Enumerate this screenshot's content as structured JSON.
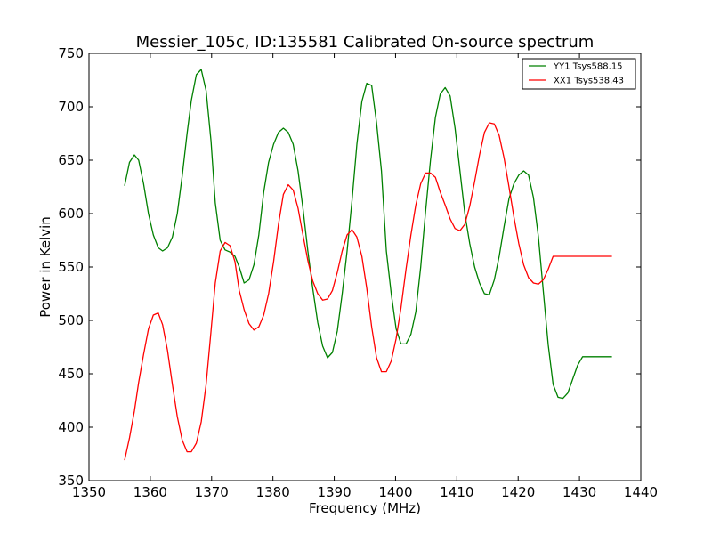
{
  "chart_data": {
    "type": "line",
    "title": "Messier_105c, ID:135581 Calibrated On-source spectrum",
    "xlabel": "Frequency (MHz)",
    "ylabel": "Power in Kelvin",
    "xlim": [
      1350,
      1440
    ],
    "ylim": [
      350,
      750
    ],
    "xticks": [
      1350,
      1360,
      1370,
      1380,
      1390,
      1400,
      1410,
      1420,
      1430,
      1440
    ],
    "yticks": [
      350,
      400,
      450,
      500,
      550,
      600,
      650,
      700,
      750
    ],
    "legend_position": "top-right",
    "series": [
      {
        "name": "YY1 Tsys588.15",
        "color": "#008000",
        "x": [
          1355.8,
          1356.6,
          1357.4,
          1358.1,
          1358.9,
          1359.7,
          1360.5,
          1361.3,
          1362.0,
          1362.8,
          1363.6,
          1364.4,
          1365.2,
          1366.0,
          1366.7,
          1367.5,
          1368.3,
          1369.1,
          1369.9,
          1370.6,
          1371.4,
          1372.2,
          1373.0,
          1373.8,
          1374.5,
          1375.3,
          1376.1,
          1376.9,
          1377.7,
          1378.5,
          1379.3,
          1380.1,
          1380.9,
          1381.7,
          1382.5,
          1383.3,
          1384.1,
          1384.9,
          1385.7,
          1386.5,
          1387.3,
          1388.1,
          1388.9,
          1389.7,
          1390.5,
          1391.3,
          1392.1,
          1392.9,
          1393.7,
          1394.5,
          1395.3,
          1396.1,
          1396.9,
          1397.7,
          1398.5,
          1399.3,
          1400.1,
          1400.9,
          1401.7,
          1402.5,
          1403.3,
          1404.1,
          1404.9,
          1405.7,
          1406.5,
          1407.3,
          1408.1,
          1408.9,
          1409.7,
          1410.5,
          1411.3,
          1412.1,
          1412.9,
          1413.7,
          1414.5,
          1415.3,
          1416.1,
          1416.9,
          1417.7,
          1418.5,
          1419.3,
          1420.1,
          1420.9,
          1421.7,
          1422.5,
          1423.3,
          1424.1,
          1424.9,
          1425.7,
          1426.5,
          1427.3,
          1428.1,
          1428.9,
          1429.7,
          1430.5,
          1431.3,
          1432.1,
          1432.9,
          1433.7,
          1434.5,
          1435.3
        ],
        "values": [
          626,
          648,
          655,
          650,
          628,
          600,
          580,
          568,
          565,
          568,
          578,
          600,
          635,
          675,
          706,
          730,
          735,
          715,
          668,
          610,
          575,
          566,
          564,
          560,
          550,
          535,
          538,
          552,
          580,
          620,
          648,
          665,
          676,
          680,
          676,
          665,
          640,
          605,
          565,
          530,
          498,
          476,
          465,
          470,
          490,
          525,
          565,
          612,
          665,
          705,
          722,
          720,
          685,
          640,
          565,
          525,
          492,
          478,
          478,
          487,
          508,
          550,
          602,
          650,
          690,
          712,
          718,
          710,
          680,
          640,
          600,
          572,
          550,
          535,
          525,
          524,
          538,
          560,
          588,
          614,
          628,
          636,
          640,
          636,
          615,
          578,
          527,
          477,
          440,
          428,
          427,
          432,
          445,
          458,
          466,
          466,
          466,
          466,
          466,
          466,
          466
        ]
      },
      {
        "name": "XX1 Tsys538.43",
        "color": "#ff0000",
        "x": [
          1355.8,
          1356.6,
          1357.4,
          1358.1,
          1358.9,
          1359.7,
          1360.5,
          1361.3,
          1362.0,
          1362.8,
          1363.6,
          1364.4,
          1365.2,
          1366.0,
          1366.7,
          1367.5,
          1368.3,
          1369.1,
          1369.9,
          1370.6,
          1371.4,
          1372.2,
          1373.0,
          1373.8,
          1374.5,
          1375.3,
          1376.1,
          1376.9,
          1377.7,
          1378.5,
          1379.3,
          1380.1,
          1380.9,
          1381.7,
          1382.5,
          1383.3,
          1384.1,
          1384.9,
          1385.7,
          1386.5,
          1387.3,
          1388.1,
          1388.9,
          1389.7,
          1390.5,
          1391.3,
          1392.1,
          1392.9,
          1393.7,
          1394.5,
          1395.3,
          1396.1,
          1396.9,
          1397.7,
          1398.5,
          1399.3,
          1400.1,
          1400.9,
          1401.7,
          1402.5,
          1403.3,
          1404.1,
          1404.9,
          1405.7,
          1406.5,
          1407.3,
          1408.1,
          1408.9,
          1409.7,
          1410.5,
          1411.3,
          1412.1,
          1412.9,
          1413.7,
          1414.5,
          1415.3,
          1416.1,
          1416.9,
          1417.7,
          1418.5,
          1419.3,
          1420.1,
          1420.9,
          1421.7,
          1422.5,
          1423.3,
          1424.1,
          1424.9,
          1425.7,
          1426.5,
          1427.3,
          1428.1,
          1428.9,
          1429.7,
          1430.5,
          1431.3,
          1432.1,
          1432.9,
          1433.7,
          1434.5,
          1435.3
        ],
        "values": [
          369,
          390,
          415,
          442,
          468,
          492,
          505,
          507,
          496,
          472,
          440,
          410,
          388,
          377,
          377,
          385,
          405,
          440,
          490,
          535,
          565,
          573,
          570,
          555,
          528,
          510,
          497,
          491,
          494,
          505,
          525,
          555,
          590,
          618,
          627,
          622,
          605,
          580,
          556,
          537,
          525,
          519,
          520,
          528,
          545,
          565,
          580,
          585,
          578,
          560,
          530,
          494,
          465,
          452,
          452,
          462,
          483,
          512,
          548,
          580,
          608,
          628,
          638,
          638,
          634,
          620,
          608,
          595,
          586,
          584,
          590,
          607,
          630,
          655,
          676,
          685,
          684,
          673,
          652,
          625,
          597,
          572,
          552,
          540,
          535,
          534,
          538,
          548,
          560,
          560,
          560,
          560,
          560,
          560,
          560,
          560,
          560,
          560,
          560,
          560,
          560
        ]
      }
    ]
  }
}
